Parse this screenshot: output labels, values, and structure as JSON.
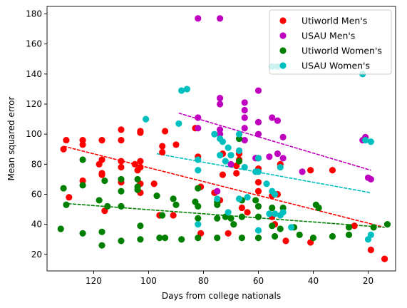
{
  "chart_data": {
    "type": "scatter",
    "xlabel": "Days from college nationals",
    "ylabel": "Mean squared error",
    "xlim": [
      137,
      10
    ],
    "ylim": [
      9,
      185
    ],
    "x_inverted": true,
    "xticks": [
      120,
      100,
      80,
      60,
      40,
      20
    ],
    "yticks": [
      20,
      40,
      60,
      80,
      100,
      120,
      140,
      160,
      180
    ],
    "legend_position": "top-right",
    "series": [
      {
        "name": "Utiworld Men's",
        "color": "#ff0000",
        "points": [
          [
            131,
            90
          ],
          [
            130,
            96
          ],
          [
            129,
            58
          ],
          [
            124,
            96
          ],
          [
            124,
            93
          ],
          [
            124,
            69
          ],
          [
            118,
            80
          ],
          [
            117,
            96
          ],
          [
            117,
            83
          ],
          [
            117,
            74
          ],
          [
            117,
            73
          ],
          [
            116,
            49
          ],
          [
            110,
            103
          ],
          [
            110,
            96
          ],
          [
            110,
            82
          ],
          [
            110,
            78
          ],
          [
            110,
            68
          ],
          [
            105,
            80
          ],
          [
            104,
            76
          ],
          [
            103,
            101
          ],
          [
            103,
            102
          ],
          [
            103,
            82
          ],
          [
            103,
            78
          ],
          [
            103,
            67
          ],
          [
            103,
            61
          ],
          [
            98,
            67
          ],
          [
            96,
            46
          ],
          [
            95,
            88
          ],
          [
            95,
            92
          ],
          [
            94,
            102
          ],
          [
            91,
            46
          ],
          [
            90,
            93
          ],
          [
            83,
            104
          ],
          [
            82,
            85
          ],
          [
            81,
            65
          ],
          [
            81,
            34
          ],
          [
            76,
            61
          ],
          [
            74,
            56
          ],
          [
            73,
            87
          ],
          [
            73,
            73
          ],
          [
            71,
            34
          ],
          [
            68,
            74
          ],
          [
            68,
            79
          ],
          [
            67,
            83
          ],
          [
            67,
            87
          ],
          [
            66,
            51
          ],
          [
            64,
            48
          ],
          [
            60,
            62
          ],
          [
            60,
            68
          ],
          [
            60,
            77
          ],
          [
            60,
            84
          ],
          [
            55,
            59
          ],
          [
            55,
            45
          ],
          [
            54,
            40
          ],
          [
            53,
            60
          ],
          [
            52,
            80
          ],
          [
            50,
            29
          ],
          [
            41,
            76
          ],
          [
            41,
            28
          ],
          [
            33,
            76
          ],
          [
            25,
            39
          ],
          [
            19,
            23
          ],
          [
            14,
            17
          ]
        ],
        "trend": [
          [
            131,
            92
          ],
          [
            14,
            38
          ]
        ]
      },
      {
        "name": "USAU Men's",
        "color": "#bf00bf",
        "points": [
          [
            82,
            177
          ],
          [
            74,
            177
          ],
          [
            82,
            111
          ],
          [
            74,
            124
          ],
          [
            74,
            120
          ],
          [
            74,
            103
          ],
          [
            74,
            100
          ],
          [
            65,
            121
          ],
          [
            65,
            116
          ],
          [
            65,
            111
          ],
          [
            65,
            104
          ],
          [
            65,
            96
          ],
          [
            60,
            129
          ],
          [
            60,
            108
          ],
          [
            60,
            100
          ],
          [
            55,
            111
          ],
          [
            53,
            109
          ],
          [
            53,
            87
          ],
          [
            51,
            98
          ],
          [
            51,
            84
          ],
          [
            44,
            75
          ],
          [
            22,
            96
          ],
          [
            21,
            98
          ],
          [
            20,
            71
          ],
          [
            19,
            70
          ],
          [
            82,
            104
          ],
          [
            75,
            62
          ],
          [
            70,
            80
          ],
          [
            67,
            89
          ],
          [
            61,
            84
          ],
          [
            56,
            85
          ]
        ],
        "trend": [
          [
            89,
            114
          ],
          [
            19,
            76
          ]
        ]
      },
      {
        "name": "Utiworld Women's",
        "color": "#008000",
        "points": [
          [
            132,
            37
          ],
          [
            131,
            64
          ],
          [
            130,
            53
          ],
          [
            124,
            83
          ],
          [
            124,
            66
          ],
          [
            124,
            34
          ],
          [
            118,
            56
          ],
          [
            117,
            35
          ],
          [
            117,
            26
          ],
          [
            116,
            69
          ],
          [
            115,
            52
          ],
          [
            110,
            70
          ],
          [
            110,
            62
          ],
          [
            110,
            52
          ],
          [
            110,
            29
          ],
          [
            104,
            65
          ],
          [
            104,
            70
          ],
          [
            104,
            63
          ],
          [
            103,
            39
          ],
          [
            103,
            30
          ],
          [
            97,
            59
          ],
          [
            96,
            31
          ],
          [
            95,
            46
          ],
          [
            94,
            31
          ],
          [
            91,
            57
          ],
          [
            90,
            53
          ],
          [
            88,
            30
          ],
          [
            83,
            55
          ],
          [
            82,
            64
          ],
          [
            82,
            52
          ],
          [
            82,
            44
          ],
          [
            82,
            31
          ],
          [
            75,
            55
          ],
          [
            75,
            53
          ],
          [
            75,
            44
          ],
          [
            75,
            31
          ],
          [
            72,
            45
          ],
          [
            70,
            44
          ],
          [
            69,
            40
          ],
          [
            67,
            97
          ],
          [
            67,
            82
          ],
          [
            66,
            56
          ],
          [
            66,
            45
          ],
          [
            66,
            31
          ],
          [
            61,
            56
          ],
          [
            60,
            52
          ],
          [
            60,
            45
          ],
          [
            60,
            31
          ],
          [
            55,
            51
          ],
          [
            55,
            39
          ],
          [
            54,
            32
          ],
          [
            52,
            37
          ],
          [
            51,
            51
          ],
          [
            47,
            38
          ],
          [
            45,
            33
          ],
          [
            40,
            31
          ],
          [
            39,
            53
          ],
          [
            38,
            51
          ],
          [
            33,
            32
          ],
          [
            27,
            38
          ],
          [
            27,
            33
          ],
          [
            18,
            38
          ],
          [
            13,
            40
          ]
        ],
        "trend": [
          [
            131,
            54
          ],
          [
            14,
            38
          ]
        ]
      },
      {
        "name": "USAU Women's",
        "color": "#00bfbf",
        "points": [
          [
            101,
            110
          ],
          [
            88,
            129
          ],
          [
            86,
            130
          ],
          [
            89,
            107
          ],
          [
            82,
            83
          ],
          [
            82,
            76
          ],
          [
            76,
            100
          ],
          [
            74,
            97
          ],
          [
            74,
            86
          ],
          [
            73,
            95
          ],
          [
            72,
            82
          ],
          [
            71,
            91
          ],
          [
            70,
            86
          ],
          [
            67,
            100
          ],
          [
            67,
            89
          ],
          [
            67,
            57
          ],
          [
            65,
            78
          ],
          [
            60,
            75
          ],
          [
            60,
            84
          ],
          [
            57,
            67
          ],
          [
            55,
            145
          ],
          [
            53,
            145
          ],
          [
            55,
            62
          ],
          [
            54,
            60
          ],
          [
            54,
            47
          ],
          [
            52,
            46
          ],
          [
            52,
            78
          ],
          [
            51,
            48
          ],
          [
            48,
            38
          ],
          [
            22,
            140
          ],
          [
            21,
            96
          ],
          [
            20,
            30
          ],
          [
            19,
            95
          ],
          [
            19,
            33
          ],
          [
            82,
            40
          ],
          [
            75,
            57
          ],
          [
            71,
            48
          ],
          [
            64,
            58
          ],
          [
            61,
            75
          ],
          [
            60,
            36
          ],
          [
            56,
            47
          ]
        ],
        "trend": [
          [
            97,
            87
          ],
          [
            19,
            61
          ]
        ]
      }
    ]
  }
}
